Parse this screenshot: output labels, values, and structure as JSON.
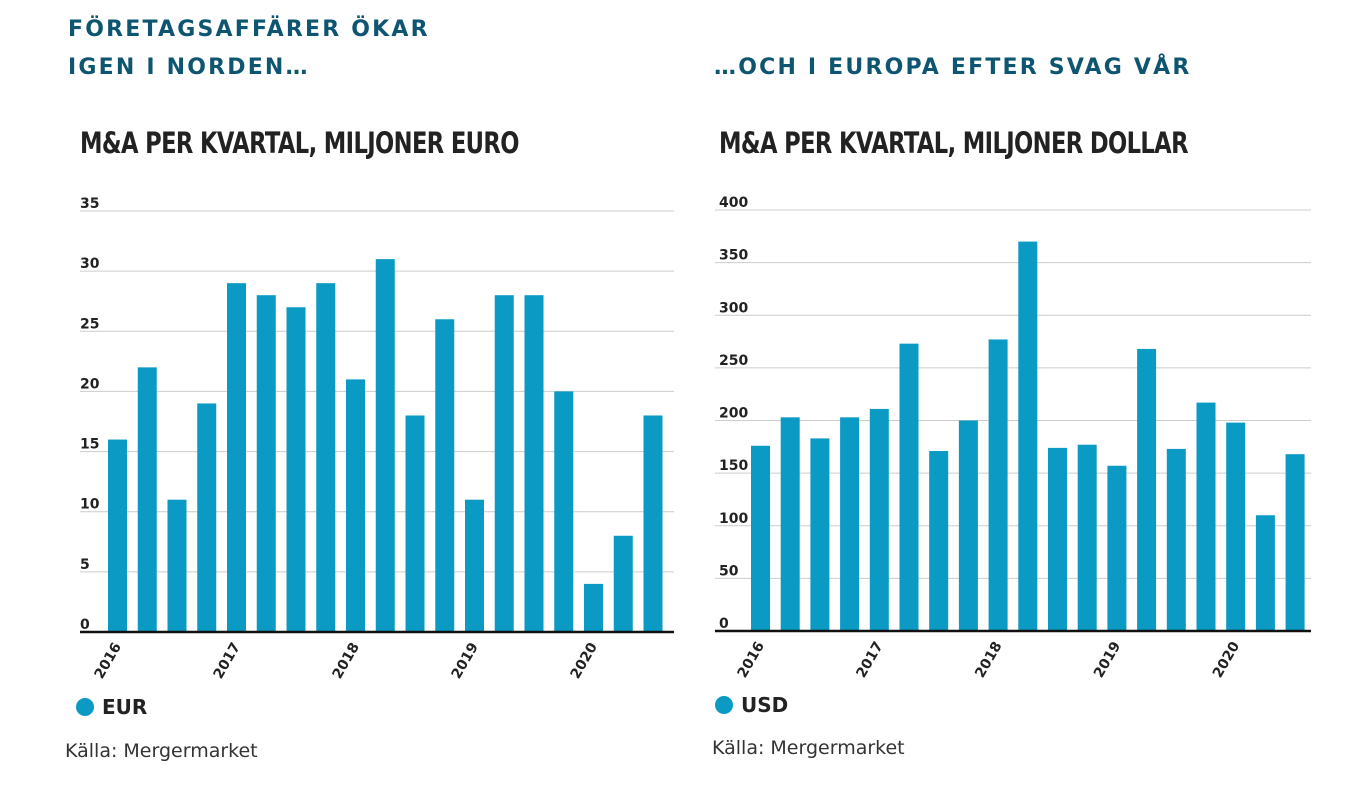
{
  "left": {
    "headline_line1": "FÖRETAGSAFFÄRER ÖKAR",
    "headline_line2": "IGEN I NORDEN…",
    "chart_title": "M&A PER KVARTAL, MILJONER EURO",
    "legend_label": "EUR",
    "source": "Källa: Mergermarket"
  },
  "right": {
    "headline": "…OCH I EUROPA EFTER SVAG VÅR",
    "chart_title": "M&A PER KVARTAL, MILJONER DOLLAR",
    "legend_label": "USD",
    "source": "Källa: Mergermarket"
  },
  "colors": {
    "bar": "#0a9ac4",
    "headline": "#0d5570",
    "grid": "#cccccc",
    "axis": "#111111"
  },
  "chart_data": [
    {
      "type": "bar",
      "title": "M&A PER KVARTAL, MILJONER EURO",
      "series": [
        {
          "name": "EUR",
          "values": [
            16,
            22,
            11,
            19,
            29,
            28,
            27,
            29,
            21,
            31,
            18,
            26,
            11,
            28,
            28,
            20,
            4,
            8,
            18
          ]
        }
      ],
      "x_tick_labels": [
        "2016",
        "2017",
        "2018",
        "2019",
        "2020"
      ],
      "x_tick_at_bar": [
        0,
        4,
        8,
        12,
        16
      ],
      "ylim": [
        0,
        35
      ],
      "y_ticks": [
        0,
        5,
        10,
        15,
        20,
        25,
        30,
        35
      ],
      "grid": true,
      "legend": "bottom-left"
    },
    {
      "type": "bar",
      "title": "M&A PER KVARTAL, MILJONER DOLLAR",
      "series": [
        {
          "name": "USD",
          "values": [
            176,
            203,
            183,
            203,
            211,
            273,
            171,
            200,
            277,
            370,
            174,
            177,
            157,
            268,
            173,
            217,
            198,
            110,
            168
          ]
        }
      ],
      "x_tick_labels": [
        "2016",
        "2017",
        "2018",
        "2019",
        "2020"
      ],
      "x_tick_at_bar": [
        0,
        4,
        8,
        12,
        16
      ],
      "ylim": [
        0,
        400
      ],
      "y_ticks": [
        0,
        50,
        100,
        150,
        200,
        250,
        300,
        350,
        400
      ],
      "grid": true,
      "legend": "bottom-left"
    }
  ]
}
